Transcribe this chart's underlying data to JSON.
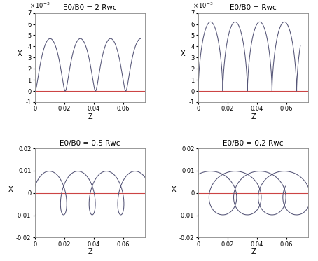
{
  "subplots": [
    {
      "title": "E0/B0 = 2 Rwc",
      "ratio": 2.0,
      "ylim": [
        -0.001,
        0.007
      ],
      "yticks": [
        -0.001,
        0,
        0.001,
        0.002,
        0.003,
        0.004,
        0.005,
        0.006,
        0.007
      ],
      "ytick_labels": [
        "-1",
        "0",
        "1",
        "2",
        "3",
        "4",
        "5",
        "6",
        "7"
      ],
      "show_sci": true,
      "n_cycles": 3.5,
      "R_c": 0.00235
    },
    {
      "title": "E0/B0 = Rwc",
      "ratio": 1.0,
      "ylim": [
        -0.001,
        0.007
      ],
      "yticks": [
        -0.001,
        0,
        0.001,
        0.002,
        0.003,
        0.004,
        0.005,
        0.006,
        0.007
      ],
      "ytick_labels": [
        "-1",
        "0",
        "1",
        "2",
        "3",
        "4",
        "5",
        "6",
        "7"
      ],
      "show_sci": true,
      "n_cycles": 4.3,
      "R_c": 0.0031
    },
    {
      "title": "E0/B0 = 0,5 Rwc",
      "ratio": 0.5,
      "ylim": [
        -0.02,
        0.02
      ],
      "yticks": [
        -0.02,
        -0.01,
        0,
        0.01,
        0.02
      ],
      "ytick_labels": [
        "-0.02",
        "-0.01",
        "0",
        "0.01",
        "0.02"
      ],
      "show_sci": false,
      "n_cycles": 3.7,
      "R_c": 0.0098
    },
    {
      "title": "E0/B0 = 0,2 Rwc",
      "ratio": 0.2,
      "ylim": [
        -0.02,
        0.02
      ],
      "yticks": [
        -0.02,
        -0.01,
        0,
        0.01,
        0.02
      ],
      "ytick_labels": [
        "-0.02",
        "-0.01",
        "0",
        "0.01",
        "0.02"
      ],
      "show_sci": false,
      "n_cycles": 4.3,
      "R_c": 0.0098
    }
  ],
  "xlim": [
    0,
    0.075
  ],
  "xticks": [
    0,
    0.02,
    0.04,
    0.06
  ],
  "xtick_labels": [
    "0",
    "0.02",
    "0.04",
    "0.06"
  ],
  "xlabel": "Z",
  "ylabel": "X",
  "line_color": "#555577",
  "hline_color": "#cc4444",
  "background_color": "#ffffff",
  "fig_background": "#ffffff"
}
